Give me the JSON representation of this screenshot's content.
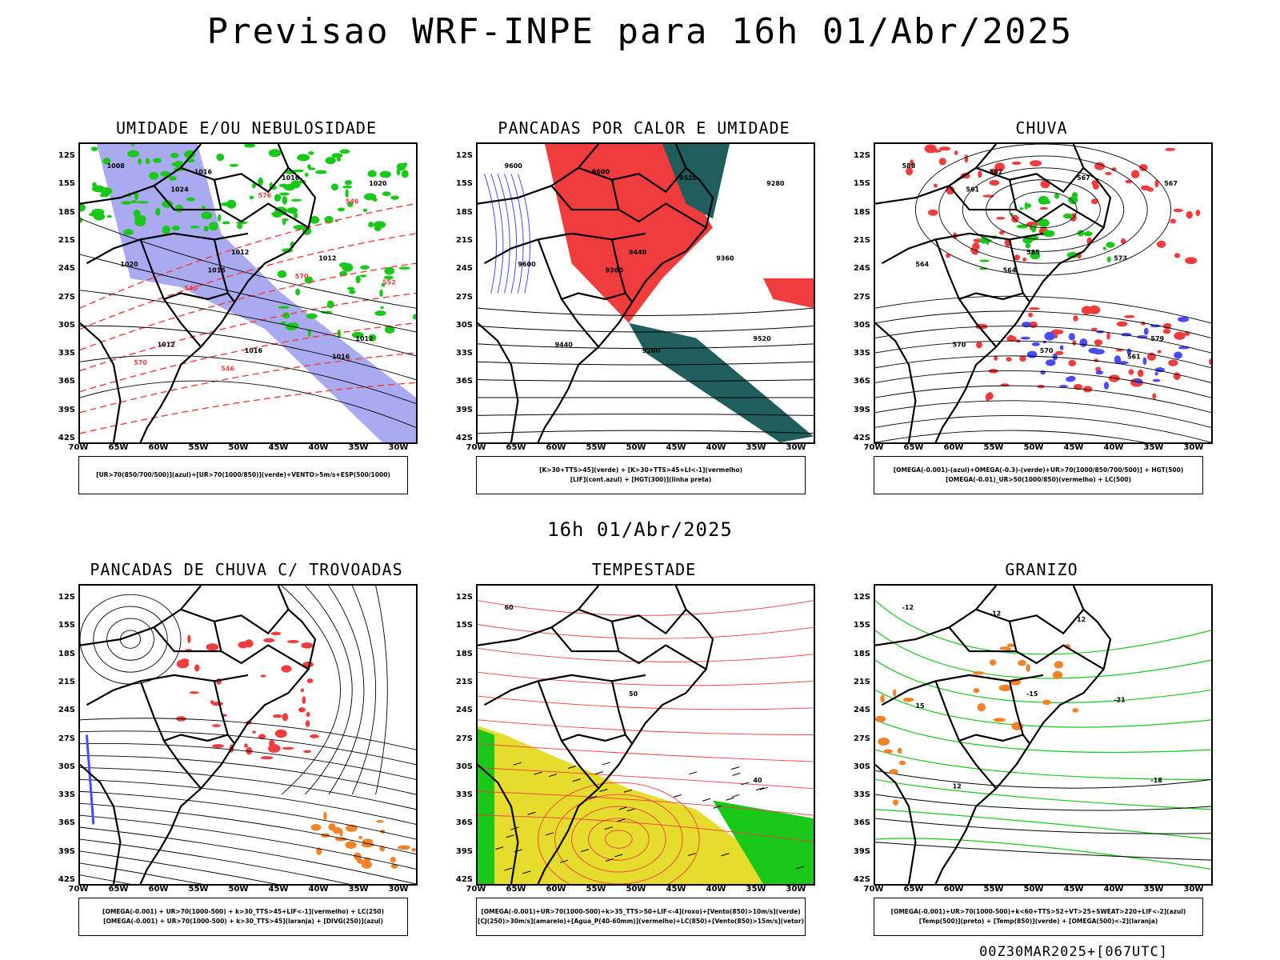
{
  "header": {
    "title": "Previsao WRF-INPE  para 16h 01/Abr/2025"
  },
  "mid_date": "16h 01/Abr/2025",
  "footer": "00Z30MAR2025+[067UTC]",
  "colors": {
    "blue": "#4a4aff",
    "lavender": "#9b9bef",
    "green": "#19c819",
    "red": "#f03c3c",
    "darkteal": "#1f5e5c",
    "yellow": "#e6dc2d",
    "orange": "#f08228",
    "black": "#000000"
  },
  "chart_data": [
    {
      "type": "map",
      "title": "UMIDADE E/OU NEBULOSIDADE",
      "legend": [
        "[UR>70(850/700/500)](azul)+[UR>70(1000/850)](verde)+VENTO>5m/s+ESP(500/1000)"
      ],
      "lat_ticks": [
        "12S",
        "15S",
        "18S",
        "21S",
        "24S",
        "27S",
        "30S",
        "33S",
        "36S",
        "39S",
        "42S"
      ],
      "lon_ticks": [
        "70W",
        "65W",
        "60W",
        "55W",
        "50W",
        "45W",
        "40W",
        "35W",
        "30W"
      ],
      "contour_labels": [
        "1008",
        "1012",
        "1012",
        "1016",
        "1012",
        "1012",
        "1016",
        "1020",
        "1016",
        "1020",
        "1016",
        "1016",
        "1024",
        "570",
        "570",
        "576",
        "552",
        "546",
        "546",
        "540"
      ]
    },
    {
      "type": "map",
      "title": "PANCADAS POR CALOR E UMIDADE",
      "legend": [
        "[K>30+TTS>45](verde) + [K>30+TTS>45+LI<-1](vermelho)",
        "[LIF](cont.azul) + [HGT(300)](linha preta)"
      ],
      "lat_ticks": [
        "12S",
        "15S",
        "18S",
        "21S",
        "24S",
        "27S",
        "30S",
        "33S",
        "36S",
        "39S",
        "42S"
      ],
      "lon_ticks": [
        "70W",
        "65W",
        "60W",
        "55W",
        "50W",
        "45W",
        "40W",
        "35W",
        "30W"
      ],
      "contour_labels": [
        "9600",
        "9440",
        "9520",
        "9600",
        "9360",
        "9440",
        "9520",
        "9600",
        "9200",
        "9280",
        "9360"
      ]
    },
    {
      "type": "map",
      "title": "CHUVA",
      "legend": [
        "[OMEGA(-0.001)-(azul)+OMEGA(-0.3)-(verde)+UR>70(1000/850/700/500)] + HGT(500)",
        "[OMEGA(-0.01)_UR>50(1000/850)(vermelho) + LC(500)"
      ],
      "lat_ticks": [
        "12S",
        "15S",
        "18S",
        "21S",
        "24S",
        "27S",
        "30S",
        "33S",
        "36S",
        "39S",
        "42S"
      ],
      "lon_ticks": [
        "70W",
        "65W",
        "60W",
        "55W",
        "50W",
        "45W",
        "40W",
        "35W",
        "30W"
      ],
      "contour_labels": [
        "588",
        "585",
        "579",
        "582",
        "573",
        "570",
        "567",
        "564",
        "570",
        "567",
        "564",
        "561",
        "561"
      ]
    },
    {
      "type": "map",
      "title": "PANCADAS DE CHUVA C/ TROVOADAS",
      "legend": [
        "[OMEGA(-0.001) + UR>70(1000-500) + k>30_TTS>45+LIF<-1](vermelho) + LC(250)",
        "[OMEGA(-0.001) + UR>70(1000-500) + k>30_TTS>45](laranja) + [DIVG(250)](azul)"
      ],
      "lat_ticks": [
        "12S",
        "15S",
        "18S",
        "21S",
        "24S",
        "27S",
        "30S",
        "33S",
        "36S",
        "39S",
        "42S"
      ],
      "lon_ticks": [
        "70W",
        "65W",
        "60W",
        "55W",
        "50W",
        "45W",
        "40W",
        "35W",
        "30W"
      ],
      "contour_labels": []
    },
    {
      "type": "map",
      "title": "TEMPESTADE",
      "legend": [
        "[OMEGA(-0.001)+UR>70(1000-500)+k>35_TTS>50+LIF<-4](roxo)+[Vento(850)>10m/s](verde)",
        "[CJ(250)>30m/s](amarelo)+[Agua_P(40-60mm)](vermelho)+LC(850)+[Vento(850)>15m/s](vetor)"
      ],
      "lat_ticks": [
        "12S",
        "15S",
        "18S",
        "21S",
        "24S",
        "27S",
        "30S",
        "33S",
        "36S",
        "39S",
        "42S"
      ],
      "lon_ticks": [
        "70W",
        "65W",
        "60W",
        "55W",
        "50W",
        "45W",
        "40W",
        "35W",
        "30W"
      ],
      "contour_labels": [
        "60",
        "50",
        "40"
      ]
    },
    {
      "type": "map",
      "title": "GRANIZO",
      "legend": [
        "[OMEGA(-0.001)+UR>70(1000-500)+k<60+TTS>52+VT>25+SWEAT>220+LIF<-2](azul)",
        "[Temp(500)](preto) + [Temp(850)](verde) + [OMEGA(500)<-2](laranja)"
      ],
      "lat_ticks": [
        "12S",
        "15S",
        "18S",
        "21S",
        "24S",
        "27S",
        "30S",
        "33S",
        "36S",
        "39S",
        "42S"
      ],
      "lon_ticks": [
        "70W",
        "65W",
        "60W",
        "55W",
        "50W",
        "45W",
        "40W",
        "35W",
        "30W"
      ],
      "contour_labels": [
        "-12",
        "-15",
        "-18",
        "-12",
        "-21",
        "12",
        "12",
        "15"
      ]
    }
  ]
}
